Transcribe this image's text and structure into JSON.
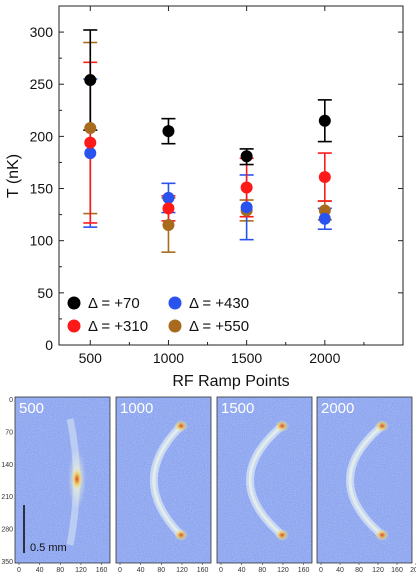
{
  "chart_data": [
    {
      "type": "scatter",
      "title": "",
      "xlabel": "RF Ramp Points",
      "ylabel": "T (nK)",
      "xlim": [
        300,
        2500
      ],
      "ylim": [
        0,
        325
      ],
      "x_ticks": [
        "500",
        "1000",
        "1500",
        "2000"
      ],
      "y_ticks": [
        "0",
        "50",
        "100",
        "150",
        "200",
        "250",
        "300"
      ],
      "grid": false,
      "legend_position": "lower-left",
      "series": [
        {
          "name": "Δ = +70",
          "color": "#000000",
          "x": [
            500,
            1000,
            1500,
            2000
          ],
          "y": [
            254,
            205,
            181,
            215
          ],
          "err_low": [
            48,
            12,
            8,
            20
          ],
          "err_high": [
            48,
            12,
            7,
            20
          ]
        },
        {
          "name": "Δ = +310",
          "color": "#ff1a1a",
          "x": [
            500,
            1000,
            1500,
            2000
          ],
          "y": [
            194,
            131,
            151,
            161
          ],
          "err_low": [
            77,
            12,
            28,
            23
          ],
          "err_high": [
            77,
            12,
            28,
            23
          ]
        },
        {
          "name": "Δ = +430",
          "color": "#2a52ee",
          "x": [
            500,
            1000,
            1500,
            2000
          ],
          "y": [
            184,
            141,
            132,
            121
          ],
          "err_low": [
            71,
            14,
            31,
            10
          ],
          "err_high": [
            71,
            14,
            31,
            10
          ]
        },
        {
          "name": "Δ = +550",
          "color": "#a86b1e",
          "x": [
            500,
            1000,
            1500,
            2000
          ],
          "y": [
            208,
            115,
            129,
            129
          ],
          "err_low": [
            82,
            26,
            10,
            9
          ],
          "err_high": [
            82,
            26,
            10,
            9
          ]
        }
      ]
    },
    {
      "type": "heatmap",
      "panels": [
        {
          "label": "500",
          "cloud": "central",
          "y_tick_labels": [
            "0",
            "70",
            "140",
            "210",
            "280",
            "350"
          ],
          "x_tick_labels": [
            "0",
            "40",
            "80",
            "120",
            "160"
          ]
        },
        {
          "label": "1000",
          "cloud": "split",
          "x_tick_labels": [
            "0",
            "40",
            "80",
            "120",
            "160"
          ]
        },
        {
          "label": "1500",
          "cloud": "split",
          "x_tick_labels": [
            "0",
            "40",
            "80",
            "120",
            "160"
          ]
        },
        {
          "label": "2000",
          "cloud": "split",
          "x_tick_labels": [
            "0",
            "40",
            "80",
            "120",
            "160",
            "200"
          ]
        }
      ],
      "scale_bar_label": "0.5 mm"
    }
  ]
}
